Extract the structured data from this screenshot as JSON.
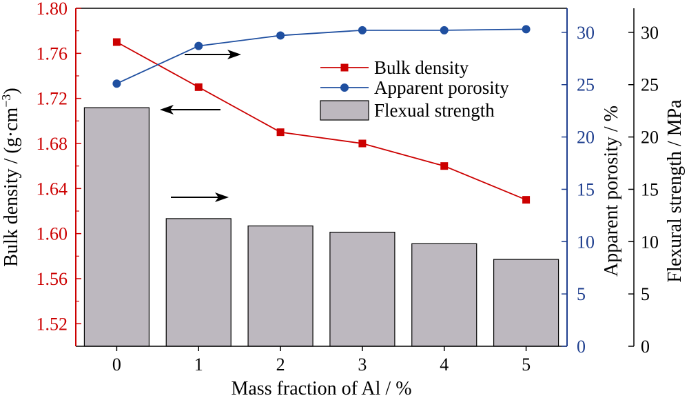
{
  "chart_data": {
    "type": "bar+line",
    "categories": [
      "0",
      "1",
      "2",
      "3",
      "4",
      "5"
    ],
    "xlabel": "Mass fraction of Al / %",
    "axes": {
      "left": {
        "label_main": "Bulk density / (g·cm",
        "label_sup": "−3",
        "label_close": ")",
        "range": [
          1.5,
          1.8
        ],
        "ticks": [
          "1.52",
          "1.56",
          "1.60",
          "1.64",
          "1.68",
          "1.72",
          "1.76",
          "1.80"
        ],
        "color": "#cc0000"
      },
      "right1": {
        "label": "Apparent porosity / %",
        "range": [
          0,
          32.3
        ],
        "ticks": [
          "0",
          "5",
          "10",
          "15",
          "20",
          "25",
          "30"
        ],
        "color": "#1f3f8f"
      },
      "right2": {
        "label": "Flexural strength / MPa",
        "range": [
          0,
          32.3
        ],
        "ticks": [
          "0",
          "5",
          "10",
          "15",
          "20",
          "25",
          "30"
        ],
        "color": "#000000"
      }
    },
    "series": [
      {
        "name": "Bulk density",
        "type": "line",
        "axis": "left",
        "color": "#cc0000",
        "marker": "square",
        "values": [
          1.77,
          1.73,
          1.69,
          1.68,
          1.66,
          1.63
        ]
      },
      {
        "name": "Apparent porosity",
        "type": "line",
        "axis": "right1",
        "color": "#1f4fa0",
        "marker": "circle",
        "values": [
          25.1,
          28.7,
          29.7,
          30.2,
          30.2,
          30.3
        ]
      },
      {
        "name": "Flexual strength",
        "type": "bar",
        "axis": "right2",
        "color": "#bdb8bf",
        "values": [
          22.8,
          12.2,
          11.5,
          10.9,
          9.8,
          8.3
        ]
      }
    ],
    "legend": {
      "position": "top-right",
      "entries": [
        "Bulk density",
        "Apparent porosity",
        "Flexual strength"
      ]
    },
    "grid": false
  }
}
